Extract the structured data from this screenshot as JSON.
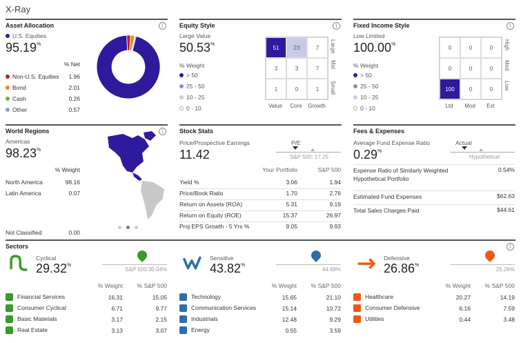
{
  "page": {
    "title": "X-Ray"
  },
  "asset_allocation": {
    "title": "Asset Allocation",
    "primary_label": "U.S. Equities",
    "primary_value": "95.19",
    "pct": "%",
    "net_header": "% Net",
    "items": [
      {
        "label": "Non-U.S. Equities",
        "value": "1.96",
        "color": "#c0182c"
      },
      {
        "label": "Bond",
        "value": "2.01",
        "color": "#f08a1c"
      },
      {
        "label": "Cash",
        "value": "0.26",
        "color": "#70ad47"
      },
      {
        "label": "Other",
        "value": "0.57",
        "color": "#8fa0c0"
      }
    ],
    "primary_color": "#2e1a9c",
    "donut_values": [
      95.19,
      1.96,
      2.01,
      0.26,
      0.57
    ]
  },
  "equity_style": {
    "title": "Equity Style",
    "sub_label": "Large Value",
    "value": "50.53",
    "weight_label": "% Weight",
    "legend": [
      "> 50",
      "25 - 50",
      "10 - 25",
      "0 - 10"
    ],
    "grid": [
      "51",
      "23",
      "7",
      "3",
      "3",
      "7",
      "1",
      "0",
      "1"
    ],
    "row_labels": [
      "Large",
      "Mid",
      "Small"
    ],
    "col_labels": [
      "Value",
      "Core",
      "Growth"
    ]
  },
  "fixed_income_style": {
    "title": "Fixed Income Style",
    "sub_label": "Low Limited",
    "value": "100.00",
    "weight_label": "% Weight",
    "legend": [
      "> 50",
      "25 - 50",
      "10 - 25",
      "0 - 10"
    ],
    "grid": [
      "0",
      "0",
      "0",
      "0",
      "0",
      "0",
      "100",
      "0",
      "0"
    ],
    "row_labels": [
      "High",
      "Med",
      "Low"
    ],
    "col_labels": [
      "Ltd",
      "Mod",
      "Ext"
    ]
  },
  "world_regions": {
    "title": "World Regions",
    "primary_label": "Americas",
    "primary_value": "98.23",
    "weight_header": "% Weight",
    "items": [
      {
        "label": "North America",
        "value": "98.16"
      },
      {
        "label": "Latin America",
        "value": "0.07"
      }
    ],
    "not_classified": {
      "label": "Not Classified",
      "value": "0.00"
    }
  },
  "stock_stats": {
    "title": "Stock Stats",
    "ratio_label": "Price/Prospective Earnings",
    "ratio_value": "11.42",
    "pe_label": "P/E",
    "pe_benchmark": "S&P 500: 17.25",
    "col_portfolio": "Your Portfolio",
    "col_benchmark": "S&P 500",
    "rows": [
      {
        "label": "Yield %",
        "portfolio": "3.06",
        "benchmark": "1.94"
      },
      {
        "label": "Price/Book Ratio",
        "portfolio": "1.70",
        "benchmark": "2.76"
      },
      {
        "label": "Return on Assets (ROA)",
        "portfolio": "5.31",
        "benchmark": "9.19"
      },
      {
        "label": "Return on Equity (ROE)",
        "portfolio": "15.37",
        "benchmark": "26.97"
      },
      {
        "label": "Proj EPS Growth - 5 Yrs %",
        "portfolio": "9.05",
        "benchmark": "9.93"
      }
    ]
  },
  "fees": {
    "title": "Fees & Expenses",
    "avg_label": "Average Fund Expense Ratio",
    "avg_value": "0.29",
    "actual_label": "Actual",
    "hypo_label": "Hypothetical",
    "rows": [
      {
        "label": "Expense Ratio of Similarly Weighted Hypothetical Portfolio",
        "value": "0.54%"
      },
      {
        "label": "Estimated Fund Expenses",
        "value": "$62.63"
      },
      {
        "label": "Total Sales Charges Paid",
        "value": "$44.61"
      }
    ]
  },
  "sectors": {
    "title": "Sectors",
    "col_weight": "% Weight",
    "col_benchmark": "% S&P 500",
    "groups": [
      {
        "name": "Cyclical",
        "value": "29.32",
        "benchmark": "S&P 500:30.04%",
        "color": "#3a9a2a",
        "items": [
          {
            "label": "Financial Services",
            "weight": "16.31",
            "sp": "15.05"
          },
          {
            "label": "Consumer Cyclical",
            "weight": "6.71",
            "sp": "9.77"
          },
          {
            "label": "Basic Materials",
            "weight": "3.17",
            "sp": "2.15"
          },
          {
            "label": "Real Estate",
            "weight": "3.13",
            "sp": "3.07"
          }
        ]
      },
      {
        "name": "Sensitive",
        "value": "43.82",
        "benchmark": "44.69%",
        "color": "#2f6ea8",
        "items": [
          {
            "label": "Technology",
            "weight": "15.65",
            "sp": "21.10"
          },
          {
            "label": "Communication Services",
            "weight": "15.14",
            "sp": "10.72"
          },
          {
            "label": "Industrials",
            "weight": "12.48",
            "sp": "9.29"
          },
          {
            "label": "Energy",
            "weight": "0.55",
            "sp": "3.59"
          }
        ]
      },
      {
        "name": "Defensive",
        "value": "26.86",
        "benchmark": "25.26%",
        "color": "#ee5a12",
        "items": [
          {
            "label": "Healthcare",
            "weight": "20.27",
            "sp": "14.19"
          },
          {
            "label": "Consumer Defensive",
            "weight": "6.16",
            "sp": "7.59"
          },
          {
            "label": "Utilities",
            "weight": "0.44",
            "sp": "3.48"
          }
        ]
      }
    ]
  }
}
